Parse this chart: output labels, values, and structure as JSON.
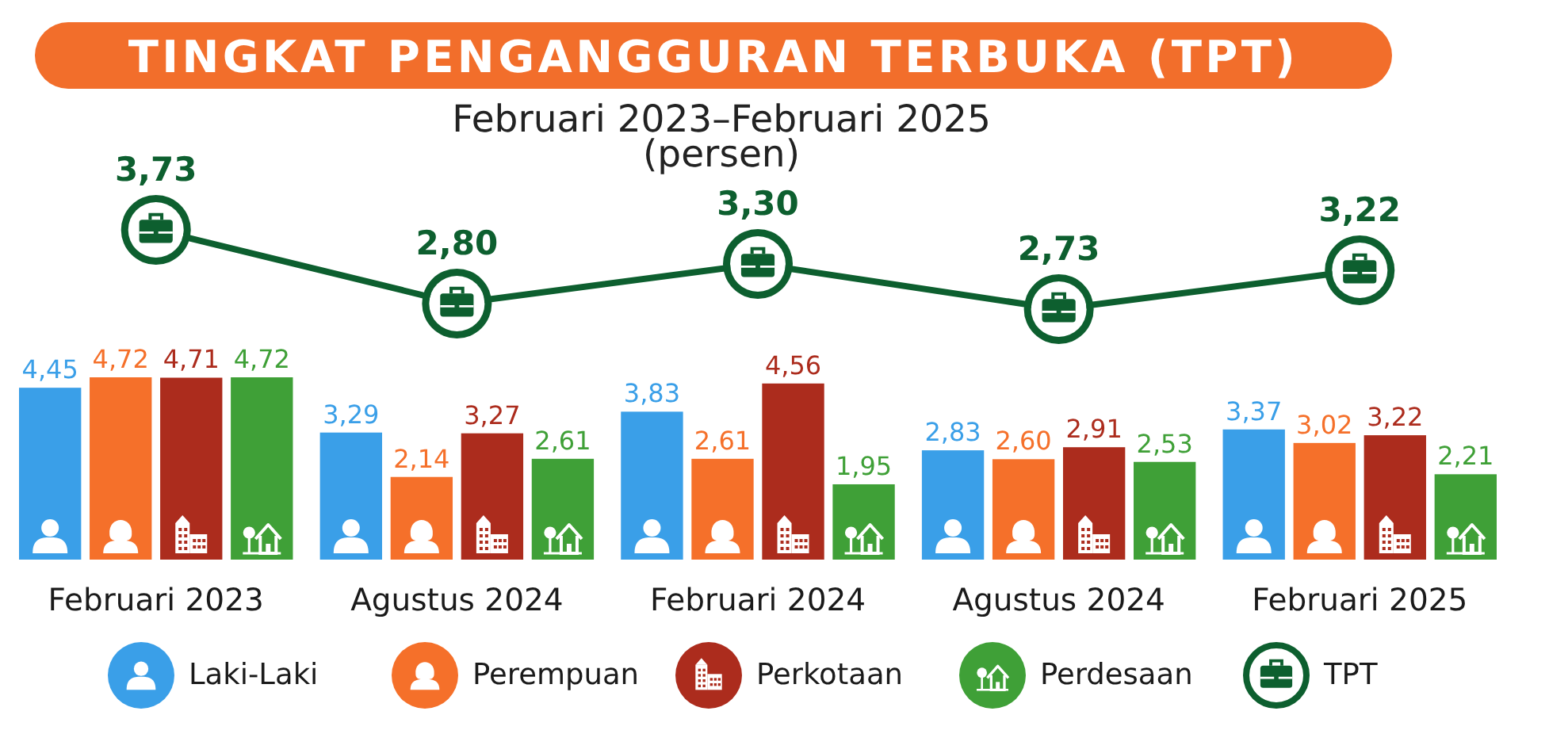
{
  "chart_data": [
    {
      "type": "line",
      "title": "TINGKAT PENGANGGURAN TERBUKA (TPT)",
      "subtitle": "Februari 2023–Februari 2025\n(persen)",
      "categories": [
        null,
        null,
        null,
        null,
        null
      ],
      "series": [
        {
          "name": "TPT",
          "color": "#0d5f2f",
          "values": [
            3.73,
            2.8,
            3.3,
            2.73,
            3.22
          ],
          "value_labels": [
            "3,73",
            "2,80",
            "3,30",
            "2,73",
            "3,22"
          ]
        }
      ],
      "marker": "circle",
      "legend": "bottom"
    },
    {
      "type": "bar",
      "categories": [
        "Februari 2023",
        "Agustus 2024",
        "Februari 2024",
        "Agustus 2024",
        "Februari 2025"
      ],
      "series": [
        {
          "name": "Laki-Laki",
          "color": "#3a9fe8",
          "values": [
            4.45,
            3.29,
            3.83,
            2.83,
            3.37
          ],
          "value_labels": [
            "4,45",
            "3,29",
            "3,83",
            "2,83",
            "3,37"
          ]
        },
        {
          "name": "Perempuan",
          "color": "#f5702a",
          "values": [
            4.72,
            2.14,
            2.61,
            2.6,
            3.02
          ],
          "value_labels": [
            "4,72",
            "2,14",
            "2,61",
            "2,60",
            "3,02"
          ]
        },
        {
          "name": "Perkotaan",
          "color": "#ac2c1d",
          "values": [
            4.71,
            3.27,
            4.56,
            2.91,
            3.22
          ],
          "value_labels": [
            "4,71",
            "3,27",
            "4,56",
            "2,91",
            "3,22"
          ]
        },
        {
          "name": "Perdesaan",
          "color": "#3fa037",
          "values": [
            4.72,
            2.61,
            1.95,
            2.53,
            2.21
          ],
          "value_labels": [
            "4,72",
            "2,61",
            "1,95",
            "2,53",
            "2,21"
          ]
        }
      ],
      "legend": "bottom"
    }
  ]
}
